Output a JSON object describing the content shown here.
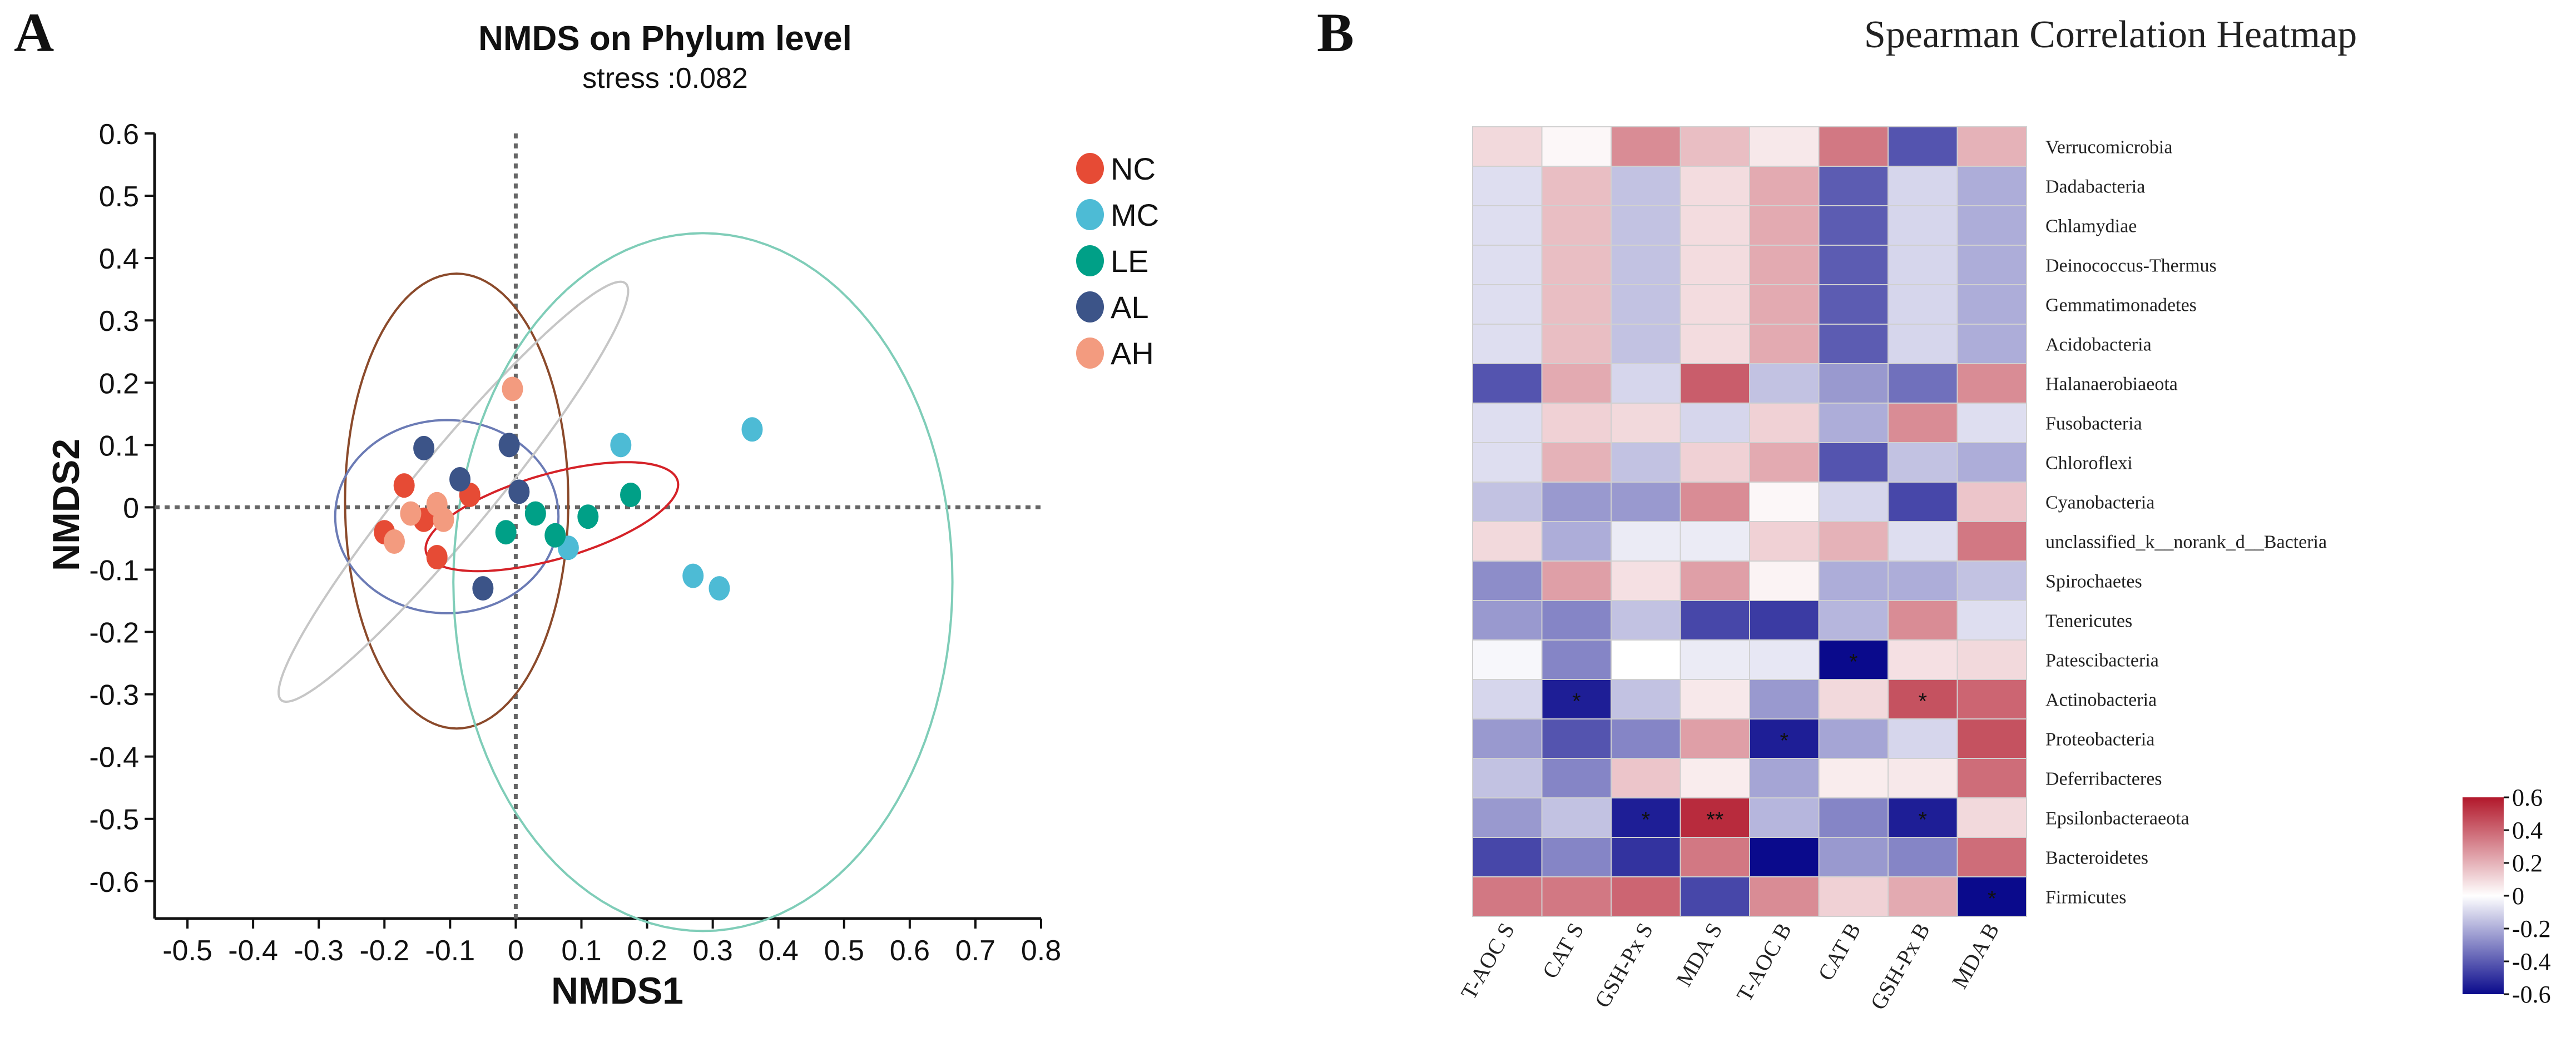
{
  "panels": {
    "a": {
      "letter": "A"
    },
    "b": {
      "letter": "B"
    }
  },
  "chart_data": [
    {
      "type": "scatter",
      "title": "NMDS on Phylum level",
      "subtitle": "stress :0.082",
      "xlabel": "NMDS1",
      "ylabel": "NMDS2",
      "xlim": [
        -0.55,
        0.8
      ],
      "ylim": [
        -0.66,
        0.6
      ],
      "xticks": [
        -0.5,
        -0.4,
        -0.3,
        -0.2,
        -0.1,
        0,
        0.1,
        0.2,
        0.3,
        0.4,
        0.5,
        0.6,
        0.7,
        0.8
      ],
      "xtick_labels": [
        "-0.5",
        "-0.4",
        "-0.3",
        "-0.2",
        "-0.1",
        "0",
        "0.1",
        "0.2",
        "0.3",
        "0.4",
        "0.5",
        "0.6",
        "0.7",
        "0.8"
      ],
      "yticks": [
        0.6,
        0.5,
        0.4,
        0.3,
        0.2,
        0.1,
        0,
        -0.1,
        -0.2,
        -0.3,
        -0.4,
        -0.5,
        -0.6
      ],
      "ytick_labels": [
        "0.6",
        "0.5",
        "0.4",
        "0.3",
        "0.2",
        "0.1",
        "0",
        "-0.1",
        "-0.2",
        "-0.3",
        "-0.4",
        "-0.5",
        "-0.6"
      ],
      "legend_position": "right",
      "series": [
        {
          "name": "NC",
          "color": "#E64B35",
          "points": [
            [
              -0.2,
              -0.04
            ],
            [
              -0.17,
              0.035
            ],
            [
              -0.14,
              -0.02
            ],
            [
              -0.12,
              -0.08
            ],
            [
              -0.07,
              0.02
            ]
          ]
        },
        {
          "name": "MC",
          "color": "#4DBBD5",
          "points": [
            [
              0.16,
              0.1
            ],
            [
              0.36,
              0.125
            ],
            [
              0.27,
              -0.11
            ],
            [
              0.31,
              -0.13
            ],
            [
              0.08,
              -0.065
            ]
          ]
        },
        {
          "name": "LE",
          "color": "#00A087",
          "points": [
            [
              -0.015,
              -0.04
            ],
            [
              0.03,
              -0.01
            ],
            [
              0.06,
              -0.045
            ],
            [
              0.11,
              -0.015
            ],
            [
              0.175,
              0.02
            ]
          ]
        },
        {
          "name": "AL",
          "color": "#3C5488",
          "points": [
            [
              -0.14,
              0.095
            ],
            [
              -0.085,
              0.045
            ],
            [
              -0.01,
              0.1
            ],
            [
              0.005,
              0.025
            ],
            [
              -0.05,
              -0.13
            ]
          ]
        },
        {
          "name": "AH",
          "color": "#F39B7F",
          "points": [
            [
              -0.185,
              -0.055
            ],
            [
              -0.16,
              -0.01
            ],
            [
              -0.12,
              0.005
            ],
            [
              -0.11,
              -0.02
            ],
            [
              -0.005,
              0.19
            ]
          ]
        }
      ],
      "ellipses": [
        {
          "color": "#8B4A2B",
          "center": [
            -0.09,
            0.01
          ],
          "rx": 0.17,
          "ry": 0.365,
          "angle_deg": 0
        },
        {
          "color": "#6B7BB5",
          "center": [
            -0.105,
            -0.015
          ],
          "rx": 0.17,
          "ry": 0.155,
          "angle_deg": 0
        },
        {
          "color": "#C6C6C6",
          "center": [
            -0.095,
            0.025
          ],
          "rx": 0.425,
          "ry": 0.062,
          "angle_deg": 52
        },
        {
          "color": "#7FCDB8",
          "center": [
            0.285,
            -0.12
          ],
          "rx": 0.38,
          "ry": 0.56,
          "angle_deg": 0
        },
        {
          "color": "#D52228",
          "center": [
            0.055,
            -0.015
          ],
          "rx": 0.2,
          "ry": 0.068,
          "angle_deg": 17
        }
      ]
    },
    {
      "type": "heatmap",
      "title": "Spearman Correlation Heatmap",
      "columns": [
        "T-AOC S",
        "CAT S",
        "GSH-Px S",
        "MDA S",
        "T-AOC B",
        "CAT B",
        "GSH-Px B",
        "MDA B"
      ],
      "rows": [
        "Verrucomicrobia",
        "Dadabacteria",
        "Chlamydiae",
        "Deinococcus-Thermus",
        "Gemmatimonadetes",
        "Acidobacteria",
        "Halanaerobiaeota",
        "Fusobacteria",
        "Chloroflexi",
        "Cyanobacteria",
        "unclassified_k__norank_d__Bacteria",
        "Spirochaetes",
        "Tenericutes",
        "Patescibacteria",
        "Actinobacteria",
        "Proteobacteria",
        "Deferribacteres",
        "Epsilonbacteraeota",
        "Bacteroidetes",
        "Firmicutes"
      ],
      "values": [
        [
          0.1,
          0.02,
          0.3,
          0.17,
          0.06,
          0.35,
          -0.42,
          0.2
        ],
        [
          -0.08,
          0.17,
          -0.15,
          0.09,
          0.22,
          -0.4,
          -0.1,
          -0.2
        ],
        [
          -0.08,
          0.17,
          -0.15,
          0.09,
          0.22,
          -0.4,
          -0.1,
          -0.2
        ],
        [
          -0.08,
          0.17,
          -0.15,
          0.09,
          0.22,
          -0.4,
          -0.1,
          -0.2
        ],
        [
          -0.08,
          0.17,
          -0.15,
          0.09,
          0.22,
          -0.4,
          -0.1,
          -0.2
        ],
        [
          -0.08,
          0.17,
          -0.15,
          0.09,
          0.22,
          -0.4,
          -0.1,
          -0.2
        ],
        [
          -0.42,
          0.22,
          -0.1,
          0.42,
          -0.15,
          -0.25,
          -0.35,
          0.3
        ],
        [
          -0.08,
          0.12,
          0.1,
          -0.1,
          0.12,
          -0.2,
          0.3,
          -0.08
        ],
        [
          -0.08,
          0.2,
          -0.15,
          0.12,
          0.22,
          -0.42,
          -0.15,
          -0.2
        ],
        [
          -0.15,
          -0.25,
          -0.25,
          0.3,
          0.02,
          -0.1,
          -0.45,
          0.15
        ],
        [
          0.1,
          -0.2,
          -0.05,
          -0.05,
          0.12,
          0.2,
          -0.08,
          0.35
        ],
        [
          -0.28,
          0.25,
          0.08,
          0.25,
          0.03,
          -0.2,
          -0.2,
          -0.15
        ],
        [
          -0.25,
          -0.3,
          -0.15,
          -0.45,
          -0.48,
          -0.18,
          0.3,
          -0.08
        ],
        [
          -0.02,
          -0.3,
          0.0,
          -0.05,
          -0.06,
          -0.6,
          0.08,
          0.1
        ],
        [
          -0.1,
          -0.55,
          -0.15,
          0.06,
          -0.25,
          0.1,
          0.45,
          0.4
        ],
        [
          -0.25,
          -0.42,
          -0.3,
          0.25,
          -0.55,
          -0.22,
          -0.1,
          0.45
        ],
        [
          -0.15,
          -0.3,
          0.15,
          0.05,
          -0.22,
          0.05,
          0.06,
          0.38
        ],
        [
          -0.25,
          -0.15,
          -0.55,
          0.55,
          -0.18,
          -0.3,
          -0.55,
          0.1
        ],
        [
          -0.45,
          -0.3,
          -0.5,
          0.35,
          -0.62,
          -0.25,
          -0.3,
          0.38
        ],
        [
          0.35,
          0.35,
          0.4,
          -0.45,
          0.3,
          0.12,
          0.22,
          -0.6
        ]
      ],
      "significance": [
        [
          14,
          1,
          "*"
        ],
        [
          13,
          5,
          "*"
        ],
        [
          14,
          6,
          "*"
        ],
        [
          15,
          4,
          "*"
        ],
        [
          17,
          2,
          "*"
        ],
        [
          17,
          3,
          "**"
        ],
        [
          17,
          6,
          "*"
        ],
        [
          19,
          7,
          "*"
        ]
      ],
      "colorbar": {
        "range": [
          -0.6,
          0.6
        ],
        "ticks": [
          0.6,
          0.4,
          0.2,
          0,
          -0.2,
          -0.4,
          -0.6
        ],
        "tick_labels": [
          "0.6",
          "0.4",
          "0.2",
          "0",
          "-0.2",
          "-0.4",
          "-0.6"
        ],
        "colors": {
          "low": "#0A0A8C",
          "mid": "#FFFFFF",
          "high": "#B2182B"
        }
      }
    }
  ]
}
